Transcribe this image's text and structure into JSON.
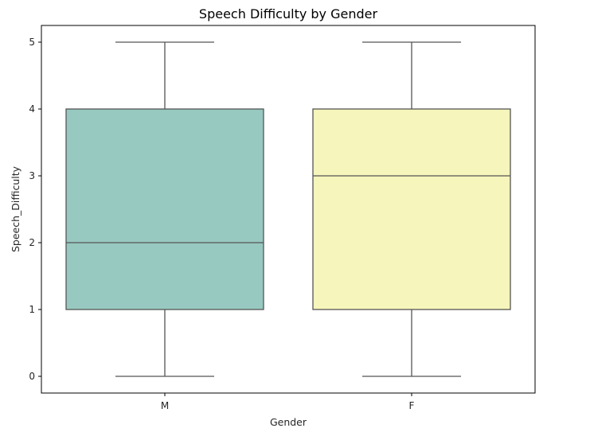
{
  "chart_data": {
    "type": "box",
    "title": "Speech Difficulty by Gender",
    "xlabel": "Gender",
    "ylabel": "Speech_Difficulty",
    "categories": [
      "M",
      "F"
    ],
    "boxes": [
      {
        "category": "M",
        "min": 0,
        "q1": 1,
        "median": 2,
        "q3": 4,
        "max": 5,
        "color": "#97c9c0"
      },
      {
        "category": "F",
        "min": 0,
        "q1": 1,
        "median": 3,
        "q3": 4,
        "max": 5,
        "color": "#f6f5bb"
      }
    ],
    "yticks": [
      0,
      1,
      2,
      3,
      4,
      5
    ],
    "ylim": [
      -0.25,
      5.25
    ],
    "grid": false,
    "line_color": "#555555"
  }
}
